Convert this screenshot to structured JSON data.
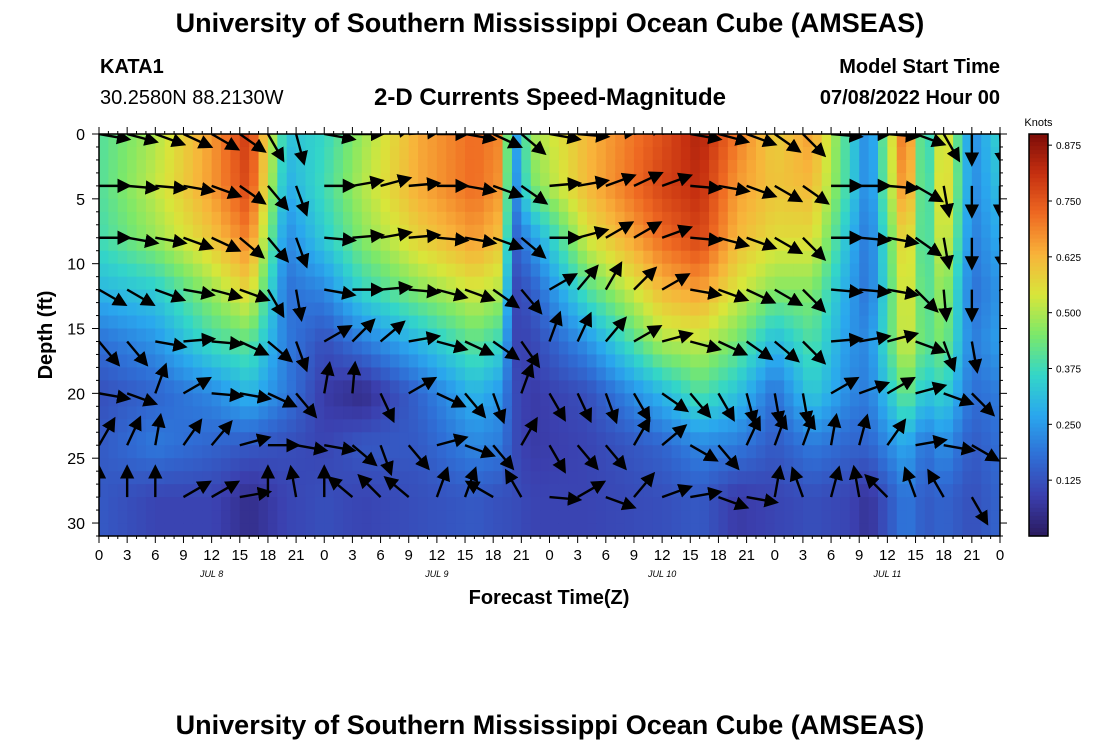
{
  "header": {
    "title": "University of Southern Mississippi Ocean Cube (AMSEAS)",
    "station": "KATA1",
    "coords": "30.2580N  88.2130W",
    "subtitle": "2-D Currents Speed-Magnitude",
    "model_label": "Model Start Time",
    "model_time": "07/08/2022 Hour 00"
  },
  "footer": {
    "title": "University of Southern Mississippi Ocean Cube (AMSEAS)"
  },
  "chart_data": {
    "type": "heatmap",
    "title": "2-D Currents Speed-Magnitude",
    "xlabel": "Forecast Time(Z)",
    "ylabel": "Depth (ft)",
    "x_tick_labels": [
      "0",
      "3",
      "6",
      "9",
      "12",
      "15",
      "18",
      "21",
      "0",
      "3",
      "6",
      "9",
      "12",
      "15",
      "18",
      "21",
      "0",
      "3",
      "6",
      "9",
      "12",
      "15",
      "18",
      "21",
      "0",
      "3",
      "6",
      "9",
      "12",
      "15",
      "18",
      "21",
      "0"
    ],
    "day_labels": [
      "JUL 8",
      "JUL 9",
      "JUL 10",
      "JUL 11"
    ],
    "x_range_hours": [
      0,
      96
    ],
    "y_range_ft": [
      0,
      31
    ],
    "y_ticks": [
      0,
      5,
      10,
      15,
      20,
      25,
      30
    ],
    "y_inverted": true,
    "colorbar": {
      "unit": "Knots",
      "tick_labels": [
        "0.875",
        "0.750",
        "0.625",
        "0.500",
        "0.375",
        "0.250",
        "0.125"
      ],
      "range": [
        0.0,
        0.9
      ],
      "colors": [
        "#2a1a5e",
        "#3b3fae",
        "#2f6fd6",
        "#2aa7ee",
        "#33d6c8",
        "#7be86a",
        "#d8e63a",
        "#f8b33a",
        "#ef6a22",
        "#c63010",
        "#7c0c08"
      ]
    },
    "depths_ft": [
      0,
      4,
      8,
      12,
      16,
      20,
      24,
      28
    ],
    "speed_profiles": [
      {
        "hour": 0,
        "speed": [
          0.4,
          0.4,
          0.38,
          0.3,
          0.18,
          0.12,
          0.14,
          0.14
        ]
      },
      {
        "hour": 6,
        "speed": [
          0.5,
          0.52,
          0.48,
          0.34,
          0.24,
          0.16,
          0.2,
          0.1
        ]
      },
      {
        "hour": 12,
        "speed": [
          0.66,
          0.66,
          0.6,
          0.48,
          0.38,
          0.22,
          0.16,
          0.1
        ]
      },
      {
        "hour": 16,
        "speed": [
          0.8,
          0.78,
          0.7,
          0.58,
          0.42,
          0.3,
          0.14,
          0.05
        ]
      },
      {
        "hour": 20,
        "speed": [
          0.32,
          0.28,
          0.22,
          0.18,
          0.2,
          0.2,
          0.12,
          0.1
        ]
      },
      {
        "hour": 24,
        "speed": [
          0.36,
          0.38,
          0.34,
          0.22,
          0.12,
          0.08,
          0.1,
          0.12
        ]
      },
      {
        "hour": 28,
        "speed": [
          0.48,
          0.5,
          0.46,
          0.36,
          0.2,
          0.04,
          0.14,
          0.1
        ]
      },
      {
        "hour": 34,
        "speed": [
          0.64,
          0.64,
          0.58,
          0.46,
          0.3,
          0.16,
          0.14,
          0.12
        ]
      },
      {
        "hour": 40,
        "speed": [
          0.72,
          0.72,
          0.66,
          0.54,
          0.42,
          0.3,
          0.22,
          0.14
        ]
      },
      {
        "hour": 43,
        "speed": [
          0.68,
          0.66,
          0.6,
          0.5,
          0.36,
          0.24,
          0.2,
          0.12
        ]
      },
      {
        "hour": 44,
        "speed": [
          0.2,
          0.18,
          0.14,
          0.1,
          0.1,
          0.12,
          0.12,
          0.12
        ]
      },
      {
        "hour": 46,
        "speed": [
          0.48,
          0.44,
          0.24,
          0.14,
          0.1,
          0.08,
          0.08,
          0.1
        ]
      },
      {
        "hour": 52,
        "speed": [
          0.62,
          0.62,
          0.54,
          0.4,
          0.24,
          0.12,
          0.1,
          0.1
        ]
      },
      {
        "hour": 60,
        "speed": [
          0.76,
          0.78,
          0.72,
          0.62,
          0.5,
          0.3,
          0.16,
          0.12
        ]
      },
      {
        "hour": 64,
        "speed": [
          0.84,
          0.82,
          0.78,
          0.66,
          0.52,
          0.4,
          0.22,
          0.14
        ]
      },
      {
        "hour": 68,
        "speed": [
          0.7,
          0.66,
          0.62,
          0.54,
          0.44,
          0.32,
          0.2,
          0.08
        ]
      },
      {
        "hour": 72,
        "speed": [
          0.58,
          0.6,
          0.56,
          0.46,
          0.3,
          0.18,
          0.14,
          0.1
        ]
      },
      {
        "hour": 76,
        "speed": [
          0.66,
          0.62,
          0.56,
          0.46,
          0.4,
          0.34,
          0.2,
          0.12
        ]
      },
      {
        "hour": 80,
        "speed": [
          0.36,
          0.36,
          0.3,
          0.26,
          0.24,
          0.22,
          0.16,
          0.1
        ]
      },
      {
        "hour": 82,
        "speed": [
          0.2,
          0.2,
          0.18,
          0.18,
          0.22,
          0.2,
          0.16,
          0.06
        ]
      },
      {
        "hour": 86,
        "speed": [
          0.76,
          0.72,
          0.62,
          0.58,
          0.56,
          0.44,
          0.28,
          0.2
        ]
      },
      {
        "hour": 88,
        "speed": [
          0.3,
          0.32,
          0.34,
          0.38,
          0.4,
          0.32,
          0.18,
          0.14
        ]
      },
      {
        "hour": 90,
        "speed": [
          0.6,
          0.62,
          0.58,
          0.5,
          0.46,
          0.36,
          0.24,
          0.16
        ]
      },
      {
        "hour": 93,
        "speed": [
          0.22,
          0.22,
          0.2,
          0.18,
          0.2,
          0.18,
          0.14,
          0.12
        ]
      },
      {
        "hour": 96,
        "speed": [
          0.36,
          0.32,
          0.28,
          0.24,
          0.26,
          0.2,
          0.18,
          0.16
        ]
      }
    ],
    "arrow_hours": [
      0,
      3,
      6,
      9,
      12,
      15,
      18,
      21,
      24,
      27,
      30,
      33,
      36,
      39,
      42,
      45,
      48,
      51,
      54,
      57,
      60,
      63,
      66,
      69,
      72,
      75,
      78,
      81,
      84,
      87,
      90,
      93,
      96
    ],
    "arrow_directions_deg": [
      [
        100,
        105,
        110,
        115,
        120,
        125,
        150,
        165,
        100,
        90,
        80,
        85,
        90,
        100,
        115,
        130,
        100,
        95,
        85,
        75,
        70,
        100,
        105,
        110,
        125,
        135,
        95,
        90,
        95,
        110,
        150,
        180,
        175
      ],
      [
        90,
        95,
        95,
        100,
        110,
        125,
        140,
        160,
        90,
        80,
        75,
        85,
        90,
        100,
        110,
        125,
        85,
        80,
        70,
        65,
        70,
        95,
        100,
        110,
        120,
        125,
        90,
        90,
        95,
        120,
        170,
        180,
        180
      ],
      [
        90,
        100,
        100,
        110,
        115,
        130,
        140,
        160,
        95,
        85,
        80,
        85,
        95,
        100,
        110,
        130,
        90,
        75,
        60,
        60,
        70,
        95,
        105,
        110,
        120,
        135,
        90,
        95,
        100,
        125,
        170,
        180,
        175
      ],
      [
        120,
        120,
        110,
        100,
        105,
        110,
        150,
        170,
        100,
        90,
        85,
        95,
        105,
        110,
        125,
        140,
        60,
        40,
        30,
        45,
        60,
        100,
        110,
        115,
        120,
        135,
        95,
        95,
        100,
        135,
        175,
        180,
        160
      ],
      [
        140,
        140,
        100,
        85,
        95,
        115,
        130,
        160,
        60,
        45,
        50,
        80,
        105,
        115,
        125,
        145,
        20,
        25,
        40,
        60,
        75,
        105,
        115,
        125,
        130,
        135,
        85,
        80,
        75,
        110,
        160,
        170,
        160
      ],
      [
        100,
        110,
        20,
        60,
        95,
        100,
        115,
        140,
        10,
        5,
        155,
        60,
        115,
        140,
        160,
        20,
        150,
        155,
        160,
        150,
        125,
        140,
        150,
        165,
        170,
        170,
        60,
        70,
        60,
        75,
        110,
        135,
        150
      ],
      [
        30,
        25,
        10,
        35,
        40,
        75,
        90,
        100,
        100,
        130,
        160,
        140,
        75,
        110,
        140,
        30,
        150,
        140,
        140,
        30,
        50,
        120,
        140,
        25,
        20,
        20,
        10,
        15,
        35,
        80,
        100,
        120,
        140
      ],
      [
        0,
        0,
        0,
        60,
        60,
        80,
        0,
        350,
        0,
        310,
        315,
        310,
        20,
        20,
        300,
        330,
        95,
        60,
        110,
        40,
        70,
        80,
        110,
        100,
        10,
        340,
        15,
        350,
        315,
        340,
        330,
        150,
        85
      ]
    ]
  }
}
